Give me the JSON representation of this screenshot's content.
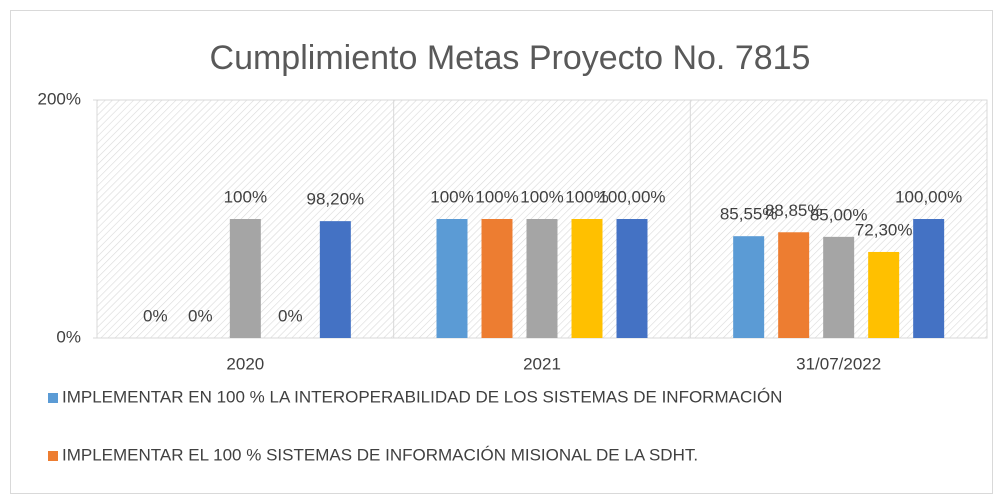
{
  "chart_data": {
    "type": "bar",
    "title": "Cumplimiento Metas Proyecto No. 7815",
    "categories": [
      "2020",
      "2021",
      "31/07/2022"
    ],
    "series": [
      {
        "name": "IMPLEMENTAR EN 100 % LA INTEROPERABILIDAD DE LOS SISTEMAS DE INFORMACIÓN",
        "color": "#5b9bd5",
        "values": [
          0,
          100,
          85.55
        ],
        "value_labels": [
          "0%",
          "100%",
          "85,55%"
        ]
      },
      {
        "name": "IMPLEMENTAR EL 100 % SISTEMAS DE INFORMACIÓN MISIONAL DE LA SDHT.",
        "color": "#ed7d31",
        "values": [
          0,
          100,
          88.85
        ],
        "value_labels": [
          "0%",
          "100%",
          "88,85%"
        ]
      },
      {
        "color": "#a5a5a5",
        "values": [
          100,
          100,
          85.0
        ],
        "value_labels": [
          "100%",
          "100%",
          "85,00%"
        ]
      },
      {
        "color": "#ffc000",
        "values": [
          0,
          100,
          72.3
        ],
        "value_labels": [
          "0%",
          "100%",
          "72,30%"
        ]
      },
      {
        "color": "#4472c4",
        "values": [
          98.2,
          100,
          100.0
        ],
        "value_labels": [
          "98,20%",
          "100,00%",
          "100,00%"
        ]
      }
    ],
    "ylim": [
      0,
      200
    ],
    "yticks": [
      {
        "value": 0,
        "label": "0%"
      },
      {
        "value": 200,
        "label": "200%"
      }
    ],
    "grid": false
  }
}
